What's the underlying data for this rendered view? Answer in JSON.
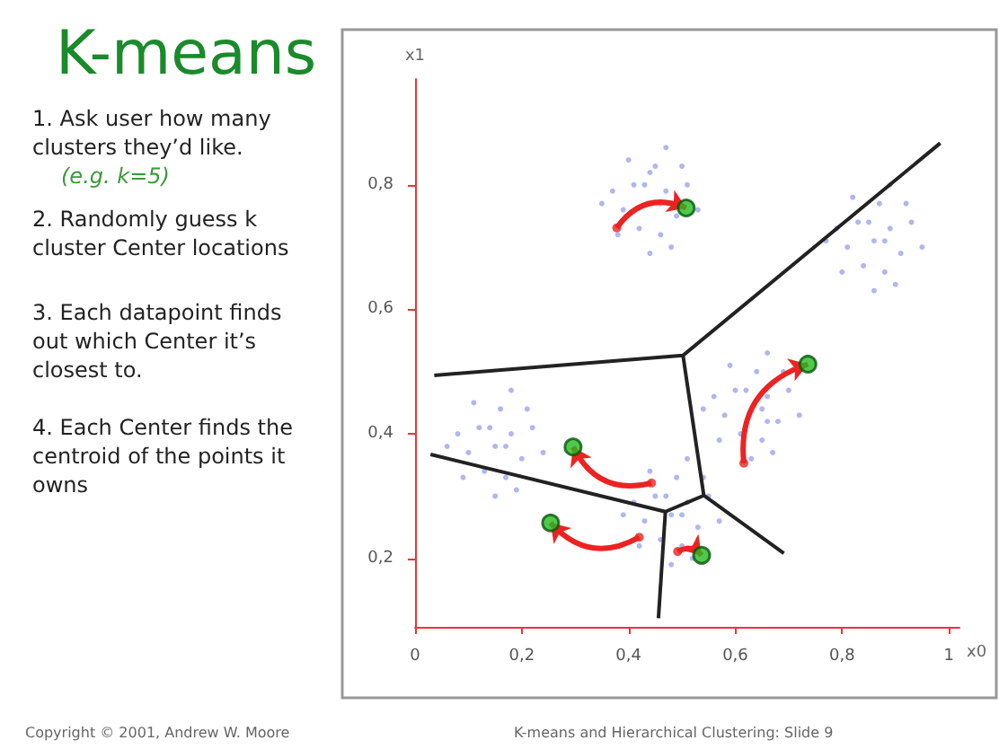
{
  "chart_data": {
    "type": "scatter",
    "title": "K-means",
    "annotations": [
      "1. Ask user how many clusters they’d like.",
      "(e.g. k=5)",
      "2. Randomly guess k cluster Center locations",
      "3. Each datapoint finds out which Center it’s closest to.",
      "4. Each Center finds the centroid of the points it owns",
      "Copyright © 2001, Andrew W. Moore",
      "K-means and Hierarchical Clustering: Slide 9"
    ],
    "xlabel": "x0",
    "ylabel": "x1",
    "xlim": [
      0,
      1.02
    ],
    "ylim": [
      0.09,
      0.97
    ],
    "xticks": [
      {
        "value": 0,
        "label": "0"
      },
      {
        "value": 0.2,
        "label": "0,2"
      },
      {
        "value": 0.4,
        "label": "0,4"
      },
      {
        "value": 0.6,
        "label": "0,6"
      },
      {
        "value": 0.8,
        "label": "0,8"
      },
      {
        "value": 1,
        "label": "1"
      }
    ],
    "yticks": [
      {
        "value": 0.2,
        "label": "0,2"
      },
      {
        "value": 0.4,
        "label": "0,4"
      },
      {
        "value": 0.6,
        "label": "0,6"
      },
      {
        "value": 0.8,
        "label": "0,8"
      }
    ],
    "grid": false,
    "marker": "circle",
    "series": [
      {
        "color": "#7b86e8",
        "x": [
          0.44,
          0.47,
          0.41,
          0.49,
          0.39,
          0.46,
          0.42,
          0.51,
          0.37,
          0.45,
          0.4,
          0.5,
          0.38,
          0.48,
          0.53,
          0.35,
          0.44,
          0.47,
          0.43,
          0.46,
          0.86,
          0.89,
          0.83,
          0.91,
          0.81,
          0.88,
          0.84,
          0.93,
          0.79,
          0.87,
          0.82,
          0.92,
          0.8,
          0.9,
          0.95,
          0.77,
          0.86,
          0.89,
          0.85,
          0.88,
          0.66,
          0.66,
          0.6,
          0.68,
          0.58,
          0.65,
          0.61,
          0.7,
          0.56,
          0.64,
          0.59,
          0.69,
          0.57,
          0.67,
          0.72,
          0.54,
          0.63,
          0.66,
          0.62,
          0.65,
          0.15,
          0.18,
          0.12,
          0.2,
          0.1,
          0.17,
          0.13,
          0.22,
          0.08,
          0.16,
          0.11,
          0.21,
          0.09,
          0.19,
          0.24,
          0.06,
          0.15,
          0.18,
          0.14,
          0.17,
          0.48,
          0.51,
          0.45,
          0.53,
          0.43,
          0.5,
          0.46,
          0.55,
          0.41,
          0.49,
          0.44,
          0.54,
          0.42,
          0.52,
          0.57,
          0.39,
          0.48,
          0.51,
          0.47,
          0.5
        ],
        "values": [
          0.82,
          0.79,
          0.8,
          0.75,
          0.76,
          0.72,
          0.73,
          0.8,
          0.79,
          0.83,
          0.84,
          0.83,
          0.72,
          0.7,
          0.76,
          0.77,
          0.69,
          0.86,
          0.8,
          0.77,
          0.71,
          0.73,
          0.74,
          0.69,
          0.7,
          0.66,
          0.67,
          0.74,
          0.73,
          0.77,
          0.78,
          0.77,
          0.66,
          0.64,
          0.7,
          0.71,
          0.63,
          0.8,
          0.74,
          0.71,
          0.42,
          0.46,
          0.47,
          0.42,
          0.43,
          0.39,
          0.4,
          0.47,
          0.46,
          0.5,
          0.51,
          0.5,
          0.39,
          0.37,
          0.43,
          0.44,
          0.36,
          0.53,
          0.47,
          0.44,
          0.38,
          0.4,
          0.41,
          0.36,
          0.37,
          0.33,
          0.34,
          0.41,
          0.4,
          0.44,
          0.45,
          0.44,
          0.33,
          0.31,
          0.37,
          0.38,
          0.3,
          0.47,
          0.41,
          0.38,
          0.27,
          0.29,
          0.3,
          0.25,
          0.26,
          0.22,
          0.23,
          0.3,
          0.29,
          0.33,
          0.34,
          0.33,
          0.22,
          0.2,
          0.26,
          0.27,
          0.19,
          0.36,
          0.3,
          0.27
        ]
      },
      {
        "color": "#22bb22",
        "x": [
          0.508,
          0.736,
          0.296,
          0.254,
          0.537
        ],
        "values": [
          0.763,
          0.512,
          0.379,
          0.257,
          0.205
        ]
      },
      {
        "color": "#ee2222",
        "x": [
          0.378,
          0.616,
          0.443,
          0.42,
          0.492
        ],
        "values": [
          0.731,
          0.353,
          0.321,
          0.234,
          0.211
        ]
      },
      {
        "type": "line",
        "marker": "none",
        "color": "#222222",
        "x": [
          0.036,
          0.502,
          0.984
        ],
        "values": [
          0.494,
          0.526,
          0.867
        ]
      },
      {
        "type": "line",
        "marker": "none",
        "color": "#222222",
        "x": [
          0.502,
          0.541,
          0.691
        ],
        "values": [
          0.526,
          0.301,
          0.208
        ]
      },
      {
        "type": "line",
        "marker": "none",
        "color": "#222222",
        "x": [
          0.541,
          0.469,
          0.029
        ],
        "values": [
          0.301,
          0.275,
          0.367
        ]
      },
      {
        "type": "line",
        "marker": "none",
        "color": "#222222",
        "x": [
          0.469,
          0.456
        ],
        "values": [
          0.275,
          0.104
        ]
      }
    ]
  }
}
